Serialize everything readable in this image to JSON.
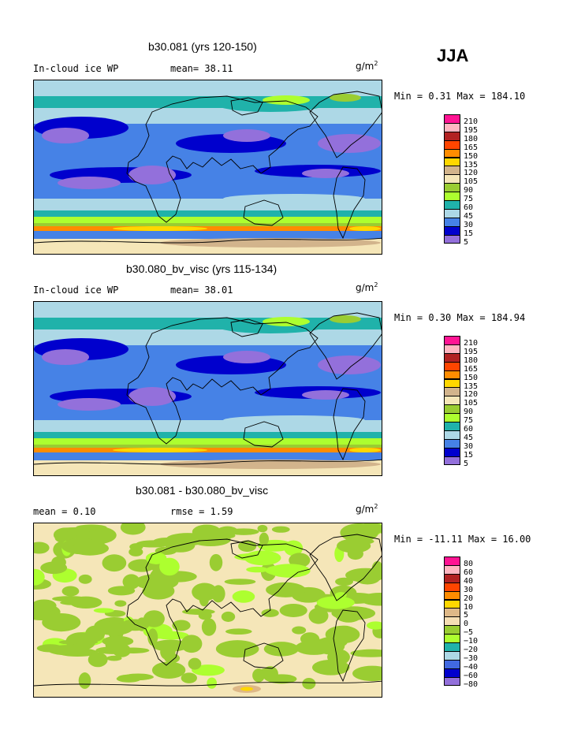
{
  "season": "JJA",
  "panels": [
    {
      "title": "b30.081 (yrs 120-150)",
      "left_label": "In-cloud ice WP",
      "mid_label": "mean=  38.11",
      "unit_base": "g/m",
      "unit_exp": "2",
      "minmax": "Min =   0.31 Max = 184.10",
      "levels": [
        "210",
        "195",
        "180",
        "165",
        "150",
        "135",
        "120",
        "105",
        "90",
        "75",
        "60",
        "45",
        "30",
        "15",
        "5"
      ]
    },
    {
      "title": "b30.080_bv_visc (yrs 115-134)",
      "left_label": "In-cloud ice WP",
      "mid_label": "mean=  38.01",
      "unit_base": "g/m",
      "unit_exp": "2",
      "minmax": "Min =   0.30 Max = 184.94",
      "levels": [
        "210",
        "195",
        "180",
        "165",
        "150",
        "135",
        "120",
        "105",
        "90",
        "75",
        "60",
        "45",
        "30",
        "15",
        "5"
      ]
    },
    {
      "title": "b30.081 - b30.080_bv_visc",
      "left_label": "mean =    0.10",
      "mid_label": "rmse =    1.59",
      "unit_base": "g/m",
      "unit_exp": "2",
      "minmax": "Min = -11.11 Max =  16.00",
      "levels": [
        "80",
        "60",
        "40",
        "30",
        "20",
        "10",
        "5",
        "0",
        "−5",
        "−10",
        "−20",
        "−30",
        "−40",
        "−60",
        "−80"
      ]
    }
  ],
  "colors": {
    "palette": [
      "#ff1493",
      "#ffb6c1",
      "#b22222",
      "#ff4500",
      "#ff8c00",
      "#ffd700",
      "#deb887",
      "#f5deb3",
      "#9acd32",
      "#adff2f",
      "#20b2aa",
      "#add8e6",
      "#4169e1",
      "#0000cd",
      "#9370db"
    ],
    "mean_palette": [
      "#ff1493",
      "#ffb6c1",
      "#b22222",
      "#ff4500",
      "#ff8c00",
      "#ffd700",
      "#d2b48c",
      "#f5e6b8",
      "#9acd32",
      "#adff2f",
      "#20b2aa",
      "#add8e6",
      "#4682e6",
      "#0000cd",
      "#9370db"
    ]
  },
  "chart_data": [
    {
      "type": "heatmap",
      "title": "b30.081 (yrs 120-150)",
      "variable": "In-cloud ice WP",
      "units": "g/m^2",
      "season": "JJA",
      "mean": 38.11,
      "min": 0.31,
      "max": 184.1,
      "contour_levels": [
        5,
        15,
        30,
        45,
        60,
        75,
        90,
        105,
        120,
        135,
        150,
        165,
        180,
        195,
        210
      ]
    },
    {
      "type": "heatmap",
      "title": "b30.080_bv_visc (yrs 115-134)",
      "variable": "In-cloud ice WP",
      "units": "g/m^2",
      "season": "JJA",
      "mean": 38.01,
      "min": 0.3,
      "max": 184.94,
      "contour_levels": [
        5,
        15,
        30,
        45,
        60,
        75,
        90,
        105,
        120,
        135,
        150,
        165,
        180,
        195,
        210
      ]
    },
    {
      "type": "heatmap",
      "title": "b30.081 - b30.080_bv_visc",
      "units": "g/m^2",
      "season": "JJA",
      "mean": 0.1,
      "rmse": 1.59,
      "min": -11.11,
      "max": 16.0,
      "contour_levels": [
        -80,
        -60,
        -40,
        -30,
        -20,
        -10,
        -5,
        0,
        5,
        10,
        20,
        30,
        40,
        60,
        80
      ]
    }
  ]
}
